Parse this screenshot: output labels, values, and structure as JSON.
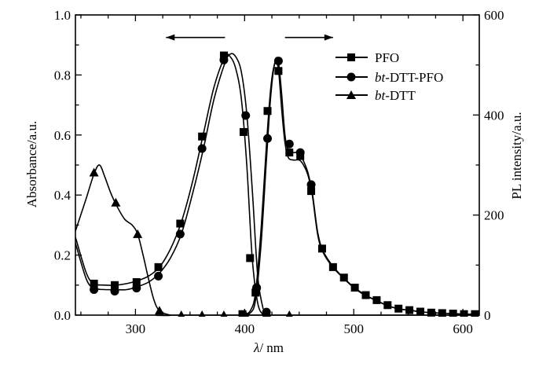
{
  "chart_data": {
    "type": "line",
    "xlabel_symbol": "λ",
    "xlabel_unit": "/ nm",
    "ylabel": "Absorbance/a.u.",
    "y2label": "PL intensity/a.u.",
    "xlim": [
      245,
      615
    ],
    "ylim": [
      0,
      1.0
    ],
    "y2lim": [
      0,
      600
    ],
    "xticks": [
      300,
      400,
      500,
      600
    ],
    "yticks": [
      0.0,
      0.2,
      0.4,
      0.6,
      0.8,
      1.0
    ],
    "yticklabels": [
      "0.0",
      "0.2",
      "0.4",
      "0.6",
      "0.8",
      "1.0"
    ],
    "y2ticks": [
      0,
      200,
      400,
      600
    ],
    "legend_position": "top-right",
    "legend": [
      {
        "label": "PFO",
        "marker": "square"
      },
      {
        "label_italic": "bt",
        "label_rest": "-DTT-PFO",
        "marker": "circle"
      },
      {
        "label_italic": "bt",
        "label_rest": "-DTT",
        "marker": "triangle"
      }
    ],
    "series": [
      {
        "name": "PFO",
        "kind": "absorption",
        "axis": "left",
        "marker": "square",
        "x": [
          245,
          255,
          262,
          272,
          282,
          292,
          302,
          312,
          322,
          332,
          342,
          352,
          362,
          372,
          382,
          387,
          392,
          397,
          402,
          407,
          412,
          417
        ],
        "y": [
          0.26,
          0.14,
          0.105,
          0.1,
          0.1,
          0.105,
          0.115,
          0.13,
          0.16,
          0.22,
          0.31,
          0.44,
          0.6,
          0.76,
          0.86,
          0.86,
          0.82,
          0.72,
          0.5,
          0.19,
          0.04,
          0.0
        ],
        "marker_x": [
          262,
          281,
          301,
          321,
          341,
          361,
          381,
          399,
          405,
          420
        ],
        "marker_y": [
          0.105,
          0.1,
          0.11,
          0.16,
          0.305,
          0.595,
          0.865,
          0.61,
          0.19,
          0.0
        ]
      },
      {
        "name": "bt-DTT-PFO",
        "kind": "absorption",
        "axis": "left",
        "marker": "circle",
        "x": [
          245,
          255,
          262,
          272,
          282,
          292,
          302,
          312,
          322,
          332,
          342,
          352,
          362,
          372,
          382,
          387,
          392,
          397,
          402,
          407,
          412,
          417
        ],
        "y": [
          0.24,
          0.12,
          0.09,
          0.085,
          0.085,
          0.085,
          0.095,
          0.11,
          0.14,
          0.19,
          0.27,
          0.4,
          0.55,
          0.72,
          0.84,
          0.87,
          0.86,
          0.81,
          0.67,
          0.42,
          0.13,
          0.02
        ],
        "marker_x": [
          262,
          281,
          301,
          321,
          341,
          361,
          381,
          401,
          411,
          420
        ],
        "marker_y": [
          0.085,
          0.08,
          0.09,
          0.13,
          0.27,
          0.555,
          0.85,
          0.665,
          0.09,
          0.01
        ]
      },
      {
        "name": "bt-DTT",
        "kind": "absorption",
        "axis": "left",
        "marker": "triangle",
        "x": [
          245,
          255,
          262,
          267,
          272,
          277,
          282,
          290,
          297,
          302,
          307,
          312,
          317,
          322,
          332,
          342,
          615
        ],
        "y": [
          0.28,
          0.39,
          0.47,
          0.5,
          0.46,
          0.41,
          0.37,
          0.32,
          0.3,
          0.27,
          0.2,
          0.12,
          0.05,
          0.015,
          0.0,
          0.0,
          0.0
        ],
        "marker_x": [
          262,
          282,
          302,
          322,
          342,
          361,
          381,
          401,
          421,
          441
        ],
        "marker_y": [
          0.475,
          0.375,
          0.27,
          0.015,
          0.0,
          0.0,
          0.0,
          0.0,
          0.0,
          0.0
        ]
      },
      {
        "name": "PFO",
        "kind": "emission",
        "axis": "right",
        "marker": "square",
        "x": [
          398,
          405,
          410,
          415,
          420,
          424,
          428,
          431,
          434,
          437,
          440,
          445,
          450,
          454,
          458,
          462,
          467,
          472,
          480,
          490,
          500,
          510,
          520,
          530,
          540,
          550,
          560,
          570,
          580,
          590,
          600,
          612
        ],
        "y": [
          0,
          8,
          45,
          170,
          340,
          455,
          505,
          490,
          410,
          345,
          315,
          310,
          310,
          300,
          280,
          240,
          160,
          125,
          98,
          75,
          55,
          40,
          30,
          20,
          13,
          10,
          7,
          5,
          4,
          3,
          2,
          2
        ],
        "marker_x": [
          398,
          410,
          421,
          431,
          441,
          451,
          461,
          471,
          481,
          491,
          501,
          511,
          521,
          531,
          541,
          551,
          561,
          571,
          581,
          591,
          601,
          611
        ],
        "marker_y": [
          2,
          45,
          408,
          488,
          325,
          318,
          248,
          133,
          96,
          75,
          55,
          40,
          30,
          20,
          13,
          10,
          7,
          5,
          4,
          3,
          2,
          2
        ]
      },
      {
        "name": "bt-DTT-PFO",
        "kind": "emission",
        "axis": "right",
        "marker": "circle",
        "x": [
          398,
          405,
          410,
          415,
          420,
          424,
          428,
          431,
          434,
          437,
          440,
          445,
          450,
          454,
          458,
          462,
          467,
          472,
          480,
          490,
          500,
          510,
          520,
          530,
          540,
          550,
          560,
          570,
          580,
          590,
          600,
          612
        ],
        "y": [
          0,
          4,
          30,
          140,
          310,
          440,
          508,
          505,
          440,
          360,
          330,
          325,
          325,
          308,
          285,
          245,
          165,
          128,
          100,
          76,
          56,
          41,
          30,
          20,
          13,
          10,
          7,
          5,
          4,
          3,
          2,
          2
        ],
        "marker_x": [
          411,
          421,
          431,
          441,
          451,
          461
        ],
        "marker_y": [
          55,
          353,
          508,
          342,
          325,
          261
        ]
      }
    ],
    "arrows": [
      {
        "direction": "left",
        "x_from": 382,
        "x_to": 328,
        "y": 0.925,
        "axis": "left"
      },
      {
        "direction": "right",
        "x_from": 437,
        "x_to": 481,
        "y": 0.925,
        "axis": "left"
      }
    ]
  }
}
